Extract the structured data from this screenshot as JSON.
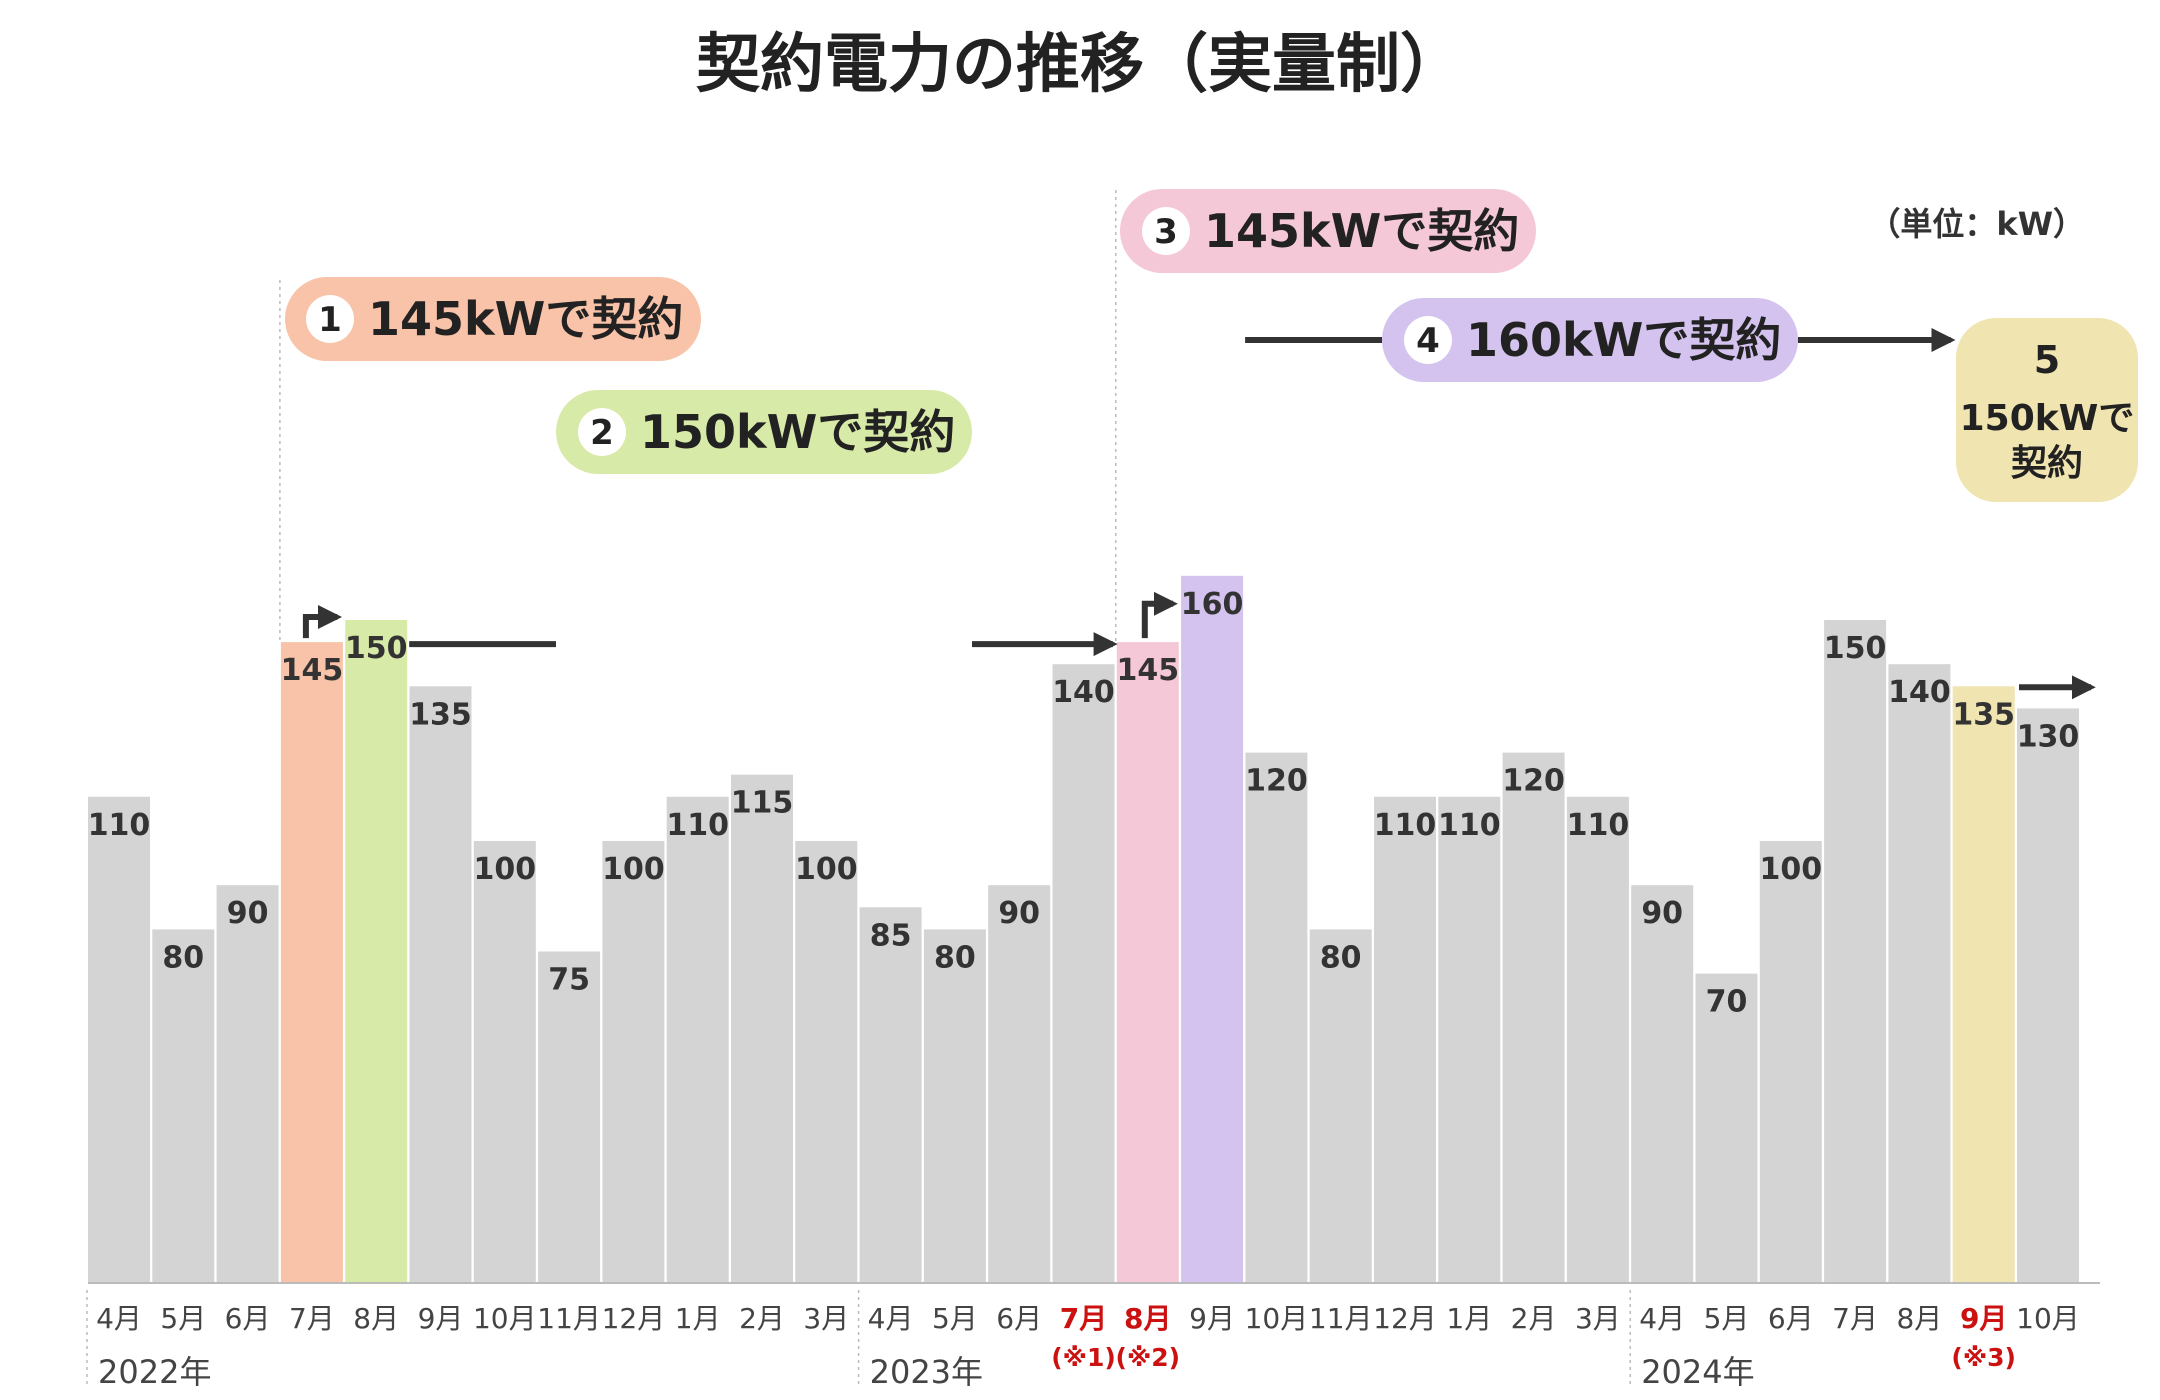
{
  "chart_data": {
    "type": "bar",
    "title": "契約電力の推移（実量制）",
    "unit_label": "（単位：kW）",
    "categories": [
      "4月",
      "5月",
      "6月",
      "7月",
      "8月",
      "9月",
      "10月",
      "11月",
      "12月",
      "1月",
      "2月",
      "3月",
      "4月",
      "5月",
      "6月",
      "7月",
      "8月",
      "9月",
      "10月",
      "11月",
      "12月",
      "1月",
      "2月",
      "3月",
      "4月",
      "5月",
      "6月",
      "7月",
      "8月",
      "9月",
      "10月"
    ],
    "values": [
      110,
      80,
      90,
      145,
      150,
      135,
      100,
      75,
      100,
      110,
      115,
      100,
      85,
      80,
      90,
      140,
      145,
      160,
      120,
      80,
      110,
      110,
      120,
      110,
      90,
      70,
      100,
      150,
      140,
      135,
      130
    ],
    "value_labels": [
      "110",
      "80",
      "90",
      "145",
      "150",
      "135",
      "100",
      "75",
      "100",
      "110",
      "115",
      "100",
      "85",
      "80",
      "90",
      "140",
      "145",
      "160",
      "120",
      "80",
      "110",
      "110",
      "120",
      "110",
      "90",
      "70",
      "100",
      "150",
      "140",
      "135",
      "130"
    ],
    "ylim": [
      0,
      180
    ],
    "years": [
      {
        "label": "2022年",
        "start_index": 0
      },
      {
        "label": "2023年",
        "start_index": 12
      },
      {
        "label": "2024年",
        "start_index": 24
      }
    ],
    "highlight_colors": {
      "3": "#f8c3a8",
      "4": "#d8eaa8",
      "16": "#f5c8d8",
      "17": "#d4c2ef",
      "29": "#f0e4b0"
    },
    "default_bar_color": "#d4d4d4",
    "red_tick_indices": [
      15,
      16,
      29
    ],
    "notes": [
      {
        "index": 15,
        "text": "(※1)"
      },
      {
        "index": 16,
        "text": "(※2)"
      },
      {
        "index": 29,
        "text": "(※3)"
      }
    ],
    "contracts": [
      {
        "num": "1",
        "text": "145kWで契約",
        "color": "#f8c3a8"
      },
      {
        "num": "2",
        "text": "150kWで契約",
        "color": "#d8eaa8"
      },
      {
        "num": "3",
        "text": "145kWで契約",
        "color": "#f5c8d8"
      },
      {
        "num": "4",
        "text": "160kWで契約",
        "color": "#d4c2ef"
      },
      {
        "num": "5",
        "text": "150kWで",
        "text2": "契約",
        "color": "#f0e4b0"
      }
    ]
  }
}
